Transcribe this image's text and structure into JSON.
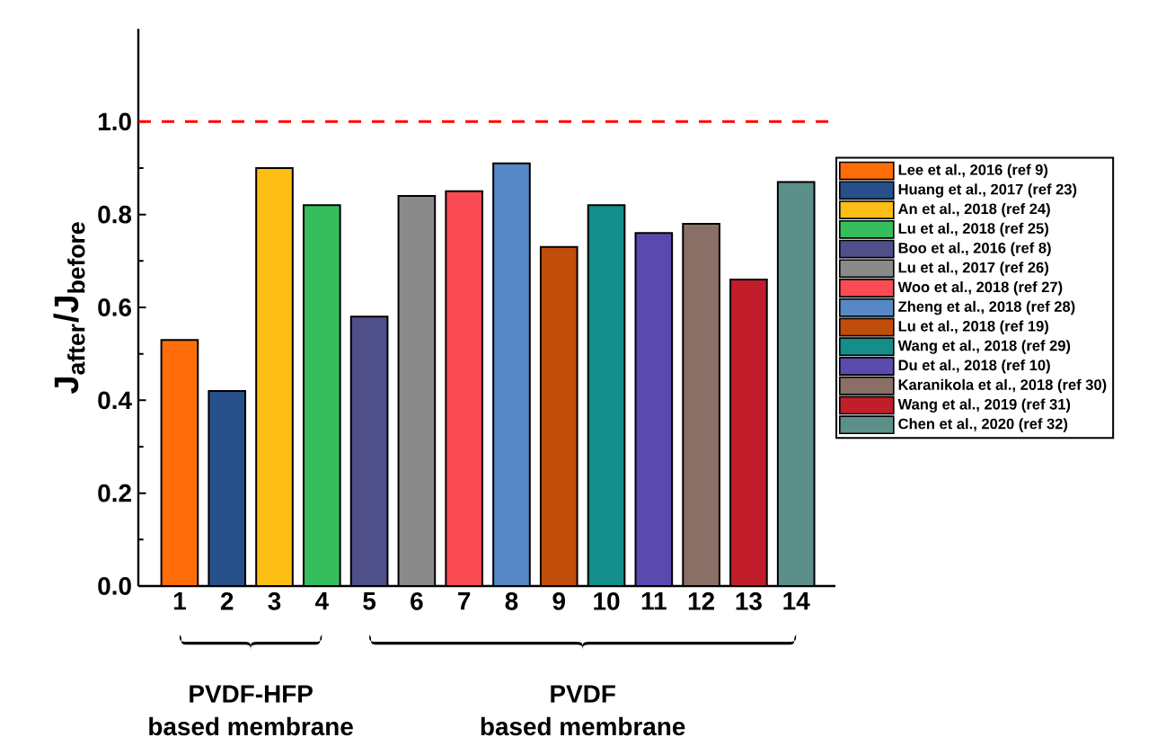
{
  "chart_data": {
    "type": "bar",
    "categories": [
      "1",
      "2",
      "3",
      "4",
      "5",
      "6",
      "7",
      "8",
      "9",
      "10",
      "11",
      "12",
      "13",
      "14"
    ],
    "ylabel": "J$_{after}$/J$_{before}$",
    "ylim": [
      0,
      1.2
    ],
    "yticks": [
      {
        "value": 0,
        "label": "0.0"
      },
      0.2,
      0.4,
      0.6,
      0.8,
      {
        "value": 1,
        "label": "1.0"
      }
    ],
    "legend": "right",
    "ref_lines": [
      {
        "axis": "y",
        "value": 1.0,
        "color": "#ff0000",
        "line_style": "dashed"
      }
    ],
    "annotations": [
      "PVDF-HFP",
      "PVDF",
      "based membrane",
      "based membrane"
    ],
    "series": [
      {
        "name": "Lee et al., 2016 (ref 9)",
        "color": "#ff6d0a",
        "values": [
          0.53,
          null,
          null,
          null,
          null,
          null,
          null,
          null,
          null,
          null,
          null,
          null,
          null,
          null
        ]
      },
      {
        "name": "Huang et al., 2017 (ref 23)",
        "color": "#27508a",
        "values": [
          null,
          0.42,
          null,
          null,
          null,
          null,
          null,
          null,
          null,
          null,
          null,
          null,
          null,
          null
        ]
      },
      {
        "name": "An et al., 2018 (ref 24)",
        "color": "#fcbd15",
        "values": [
          null,
          null,
          0.9,
          null,
          null,
          null,
          null,
          null,
          null,
          null,
          null,
          null,
          null,
          null
        ]
      },
      {
        "name": "Lu et al., 2018 (ref 25)",
        "color": "#36be5e",
        "values": [
          null,
          null,
          null,
          0.82,
          null,
          null,
          null,
          null,
          null,
          null,
          null,
          null,
          null,
          null
        ]
      },
      {
        "name": "Boo et al., 2016 (ref 8)",
        "color": "#4f4f8a",
        "values": [
          null,
          null,
          null,
          null,
          0.58,
          null,
          null,
          null,
          null,
          null,
          null,
          null,
          null,
          null
        ]
      },
      {
        "name": "Lu et al., 2017 (ref 26)",
        "color": "#8a8a8a",
        "values": [
          null,
          null,
          null,
          null,
          null,
          0.84,
          null,
          null,
          null,
          null,
          null,
          null,
          null,
          null
        ]
      },
      {
        "name": "Woo et al., 2018 (ref 27)",
        "color": "#fa4b55",
        "values": [
          null,
          null,
          null,
          null,
          null,
          null,
          0.85,
          null,
          null,
          null,
          null,
          null,
          null,
          null
        ]
      },
      {
        "name": "Zheng et al., 2018 (ref 28)",
        "color": "#5588c5",
        "values": [
          null,
          null,
          null,
          null,
          null,
          null,
          null,
          0.91,
          null,
          null,
          null,
          null,
          null,
          null
        ]
      },
      {
        "name": "Lu et al., 2018 (ref 19)",
        "color": "#c04d0a",
        "values": [
          null,
          null,
          null,
          null,
          null,
          null,
          null,
          null,
          0.73,
          null,
          null,
          null,
          null,
          null
        ]
      },
      {
        "name": "Wang et al., 2018 (ref 29)",
        "color": "#138e8a",
        "values": [
          null,
          null,
          null,
          null,
          null,
          null,
          null,
          null,
          null,
          0.82,
          null,
          null,
          null,
          null
        ]
      },
      {
        "name": "Du et al., 2018 (ref 10)",
        "color": "#5b4aad",
        "values": [
          null,
          null,
          null,
          null,
          null,
          null,
          null,
          null,
          null,
          null,
          0.76,
          null,
          null,
          null
        ]
      },
      {
        "name": "Karanikola et al., 2018 (ref 30)",
        "color": "#8a6f66",
        "values": [
          null,
          null,
          null,
          null,
          null,
          null,
          null,
          null,
          null,
          null,
          null,
          0.78,
          null,
          null
        ]
      },
      {
        "name": "Wang et al., 2019 (ref 31)",
        "color": "#c11d2a",
        "values": [
          null,
          null,
          null,
          null,
          null,
          null,
          null,
          null,
          null,
          null,
          null,
          null,
          0.66,
          null
        ]
      },
      {
        "name": "Chen et al., 2020 (ref 32)",
        "color": "#5a8f8a",
        "values": [
          null,
          null,
          null,
          null,
          null,
          null,
          null,
          null,
          null,
          null,
          null,
          null,
          null,
          0.87
        ]
      }
    ]
  }
}
